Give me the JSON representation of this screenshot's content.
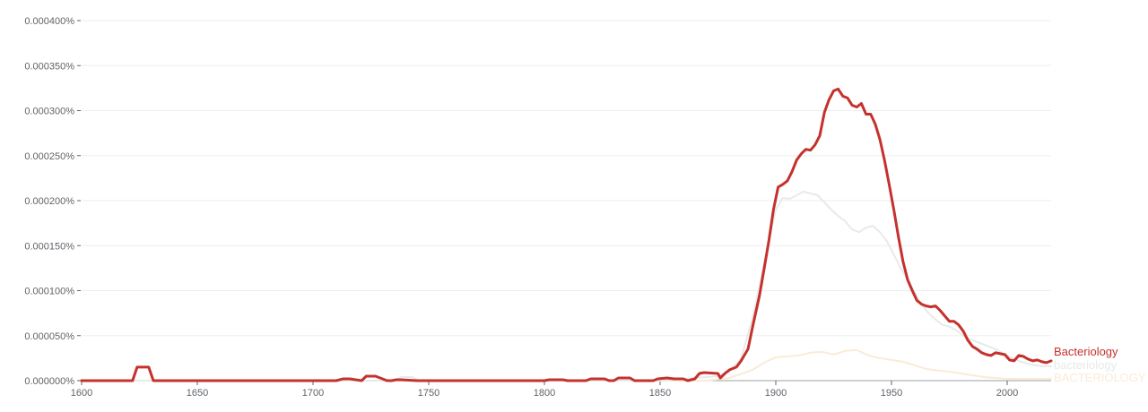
{
  "chart_data": {
    "type": "line",
    "xlim": [
      1600,
      2019
    ],
    "ylim": [
      0,
      0.0004
    ],
    "y_unit": "%",
    "x_ticks": [
      1600,
      1650,
      1700,
      1750,
      1800,
      1850,
      1900,
      1950,
      2000
    ],
    "x_tick_labels": [
      "1600",
      "1650",
      "1700",
      "1750",
      "1800",
      "1850",
      "1900",
      "1950",
      "2000"
    ],
    "y_ticks": [
      0,
      5e-05,
      0.0001,
      0.00015,
      0.0002,
      0.00025,
      0.0003,
      0.00035,
      0.0004
    ],
    "y_tick_labels": [
      "0.000000%",
      "0.000050%",
      "0.000100%",
      "0.000150%",
      "0.000200%",
      "0.000250%",
      "0.000300%",
      "0.000350%",
      "0.000400%"
    ],
    "grid": true,
    "legend": "inline-right",
    "series": [
      {
        "name": "Bacteriology",
        "color": "#c5312d",
        "x": [
          1600,
          1622,
          1624,
          1626,
          1629,
          1631,
          1710,
          1713,
          1716,
          1721,
          1723,
          1725,
          1727,
          1732,
          1734,
          1736,
          1738,
          1745,
          1747,
          1800,
          1802,
          1808,
          1810,
          1818,
          1820,
          1826,
          1828,
          1830,
          1832,
          1837,
          1839,
          1847,
          1849,
          1853,
          1856,
          1860,
          1862,
          1865,
          1867,
          1869,
          1875,
          1876,
          1878,
          1880,
          1883,
          1885,
          1888,
          1890,
          1893,
          1895,
          1897,
          1899,
          1901,
          1903,
          1905,
          1907,
          1909,
          1911,
          1913,
          1915,
          1917,
          1919,
          1921,
          1923,
          1925,
          1927,
          1929,
          1931,
          1933,
          1935,
          1937,
          1939,
          1941,
          1943,
          1945,
          1947,
          1949,
          1951,
          1953,
          1955,
          1957,
          1959,
          1961,
          1963,
          1965,
          1967,
          1969,
          1971,
          1973,
          1975,
          1977,
          1979,
          1981,
          1983,
          1985,
          1987,
          1989,
          1991,
          1993,
          1995,
          1997,
          1999,
          2001,
          2003,
          2005,
          2007,
          2009,
          2011,
          2013,
          2015,
          2017,
          2019
        ],
        "y": [
          0,
          0,
          1.5e-05,
          1.5e-05,
          1.5e-05,
          0,
          0,
          2e-06,
          2e-06,
          0,
          5e-06,
          5e-06,
          5e-06,
          0,
          0,
          1e-06,
          1e-06,
          0,
          0,
          0,
          1e-06,
          1e-06,
          0,
          0,
          2e-06,
          2e-06,
          0,
          0,
          3e-06,
          3e-06,
          0,
          0,
          2e-06,
          3e-06,
          2e-06,
          2e-06,
          0,
          2e-06,
          8e-06,
          9e-06,
          8e-06,
          3e-06,
          8e-06,
          1.2e-05,
          1.5e-05,
          2.2e-05,
          3.5e-05,
          6e-05,
          9.5e-05,
          0.000125,
          0.000155,
          0.00019,
          0.000215,
          0.000218,
          0.000222,
          0.000232,
          0.000245,
          0.000252,
          0.000257,
          0.000256,
          0.000262,
          0.000272,
          0.000298,
          0.000312,
          0.000322,
          0.000324,
          0.000316,
          0.000314,
          0.000306,
          0.000304,
          0.000308,
          0.000296,
          0.000296,
          0.000285,
          0.000268,
          0.000245,
          0.000218,
          0.00019,
          0.00016,
          0.000132,
          0.000112,
          0.0001,
          8.9e-05,
          8.5e-05,
          8.3e-05,
          8.2e-05,
          8.3e-05,
          7.8e-05,
          7.2e-05,
          6.6e-05,
          6.6e-05,
          6.2e-05,
          5.5e-05,
          4.5e-05,
          3.8e-05,
          3.5e-05,
          3.1e-05,
          2.9e-05,
          2.8e-05,
          3.1e-05,
          3e-05,
          2.9e-05,
          2.3e-05,
          2.2e-05,
          2.8e-05,
          2.7e-05,
          2.4e-05,
          2.2e-05,
          2.3e-05,
          2.1e-05,
          2e-05,
          2.2e-05
        ]
      },
      {
        "name": "bacteriology",
        "color": "#e6ebe8",
        "x": [
          1600,
          1735,
          1738,
          1743,
          1746,
          1850,
          1875,
          1880,
          1885,
          1890,
          1895,
          1900,
          1903,
          1906,
          1909,
          1912,
          1915,
          1918,
          1921,
          1924,
          1927,
          1930,
          1933,
          1936,
          1939,
          1942,
          1945,
          1948,
          1951,
          1954,
          1957,
          1960,
          1963,
          1966,
          1969,
          1972,
          1975,
          1978,
          1981,
          1984,
          1987,
          1990,
          1995,
          2000,
          2005,
          2010,
          2015,
          2019
        ],
        "y": [
          0,
          0,
          4e-06,
          4e-06,
          0,
          0,
          5e-06,
          1e-05,
          2.5e-05,
          7e-05,
          0.00013,
          0.00019,
          0.000203,
          0.000202,
          0.000206,
          0.00021,
          0.000208,
          0.000206,
          0.000198,
          0.00019,
          0.000183,
          0.000177,
          0.000168,
          0.000165,
          0.00017,
          0.000172,
          0.000165,
          0.000155,
          0.00014,
          0.000125,
          0.000112,
          9.8e-05,
          8.5e-05,
          7.5e-05,
          6.8e-05,
          6.2e-05,
          6e-05,
          5.6e-05,
          5e-05,
          4.6e-05,
          4.3e-05,
          4e-05,
          3.5e-05,
          2.8e-05,
          2.2e-05,
          1.8e-05,
          1.6e-05,
          1.6e-05
        ]
      },
      {
        "name": "BACTERIOLOGY",
        "color": "#faebd7",
        "x": [
          1600,
          1870,
          1880,
          1890,
          1895,
          1900,
          1905,
          1910,
          1915,
          1920,
          1925,
          1930,
          1935,
          1940,
          1945,
          1950,
          1955,
          1960,
          1965,
          1970,
          1975,
          1980,
          1985,
          1990,
          1995,
          2000,
          2005,
          2010,
          2015,
          2019
        ],
        "y": [
          0,
          0,
          3e-06,
          1.2e-05,
          2e-05,
          2.6e-05,
          2.7e-05,
          2.8e-05,
          3.1e-05,
          3.2e-05,
          2.9e-05,
          3.3e-05,
          3.4e-05,
          2.8e-05,
          2.5e-05,
          2.3e-05,
          2.1e-05,
          1.7e-05,
          1.3e-05,
          1.1e-05,
          1e-05,
          8e-06,
          6e-06,
          4e-06,
          3e-06,
          2e-06,
          2e-06,
          2e-06,
          2e-06,
          2e-06
        ]
      }
    ]
  }
}
